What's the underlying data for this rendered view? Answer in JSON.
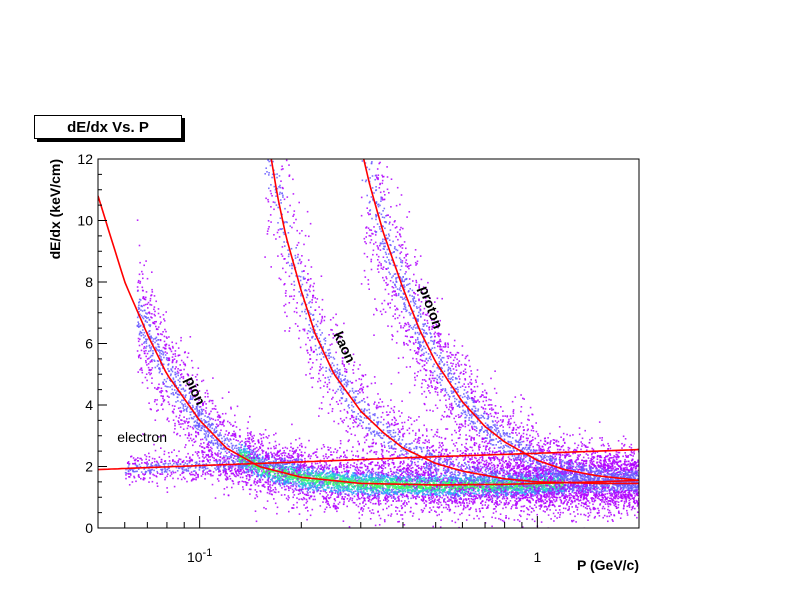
{
  "chart_data": {
    "type": "scatter",
    "title": "dE/dx Vs. P",
    "xlabel": "P (GeV/c)",
    "ylabel": "dE/dx (keV/cm)",
    "x_scale": "log",
    "xlim": [
      0.05,
      2.0
    ],
    "ylim": [
      0,
      12
    ],
    "grid": false,
    "x_tick_labels": [
      {
        "value": 0.1,
        "base": "10",
        "exp": "-1"
      },
      {
        "value": 1,
        "base": "1",
        "exp": ""
      }
    ],
    "y_ticks": [
      0,
      2,
      4,
      6,
      8,
      10,
      12
    ],
    "series": [
      {
        "name": "electron",
        "x": [
          0.05,
          0.1,
          0.2,
          0.5,
          1.0,
          2.0
        ],
        "y": [
          1.9,
          2.03,
          2.15,
          2.32,
          2.43,
          2.55
        ]
      },
      {
        "name": "pion",
        "x": [
          0.05,
          0.06,
          0.07,
          0.08,
          0.1,
          0.12,
          0.15,
          0.2,
          0.3,
          0.5,
          0.8,
          1.0,
          1.5,
          2.0
        ],
        "y": [
          10.8,
          8.0,
          6.3,
          5.0,
          3.5,
          2.6,
          2.0,
          1.65,
          1.45,
          1.4,
          1.42,
          1.45,
          1.5,
          1.55
        ]
      },
      {
        "name": "kaon",
        "x": [
          0.163,
          0.17,
          0.18,
          0.2,
          0.22,
          0.25,
          0.3,
          0.35,
          0.4,
          0.5,
          0.6,
          0.8,
          1.0,
          1.5,
          2.0
        ],
        "y": [
          12.0,
          10.8,
          9.5,
          7.7,
          6.3,
          5.0,
          3.8,
          3.1,
          2.6,
          2.1,
          1.85,
          1.6,
          1.5,
          1.45,
          1.45
        ]
      },
      {
        "name": "proton",
        "x": [
          0.306,
          0.32,
          0.35,
          0.4,
          0.45,
          0.5,
          0.6,
          0.7,
          0.8,
          1.0,
          1.2,
          1.5,
          2.0
        ],
        "y": [
          12.0,
          11.1,
          9.6,
          7.8,
          6.4,
          5.4,
          4.1,
          3.3,
          2.8,
          2.2,
          1.9,
          1.7,
          1.55
        ]
      }
    ],
    "band_colors": [
      "#b000ff",
      "#6a5cff",
      "#2aa8ff",
      "#22e0c0",
      "#40ff60",
      "#d8ff20",
      "#ffa000",
      "#ff2000"
    ],
    "curve_color": "#ff0000"
  }
}
